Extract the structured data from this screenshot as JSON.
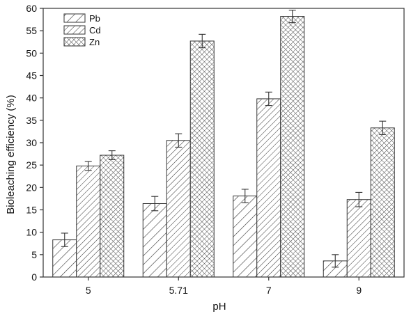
{
  "chart_data": {
    "type": "bar",
    "title": "",
    "xlabel": "pH",
    "ylabel": "Bioleaching efficiency (%)",
    "categories": [
      "5",
      "5.71",
      "7",
      "9"
    ],
    "series": [
      {
        "name": "Pb",
        "pattern": "diagonal-wide",
        "values": [
          8.3,
          16.4,
          18.1,
          3.6
        ],
        "errors": [
          1.5,
          1.6,
          1.5,
          1.4
        ]
      },
      {
        "name": "Cd",
        "pattern": "diagonal-dense",
        "values": [
          24.8,
          30.5,
          39.8,
          17.3
        ],
        "errors": [
          1.0,
          1.5,
          1.5,
          1.6
        ]
      },
      {
        "name": "Zn",
        "pattern": "crosshatch",
        "values": [
          27.2,
          52.7,
          58.2,
          33.3
        ],
        "errors": [
          1.0,
          1.5,
          1.4,
          1.5
        ]
      }
    ],
    "ylim": [
      0,
      60
    ],
    "yticks": [
      0,
      5,
      10,
      15,
      20,
      25,
      30,
      35,
      40,
      45,
      50,
      55,
      60
    ],
    "grid": false,
    "legend_position": "top-left",
    "colors": {
      "stroke": "#333333",
      "background": "#ffffff"
    }
  }
}
